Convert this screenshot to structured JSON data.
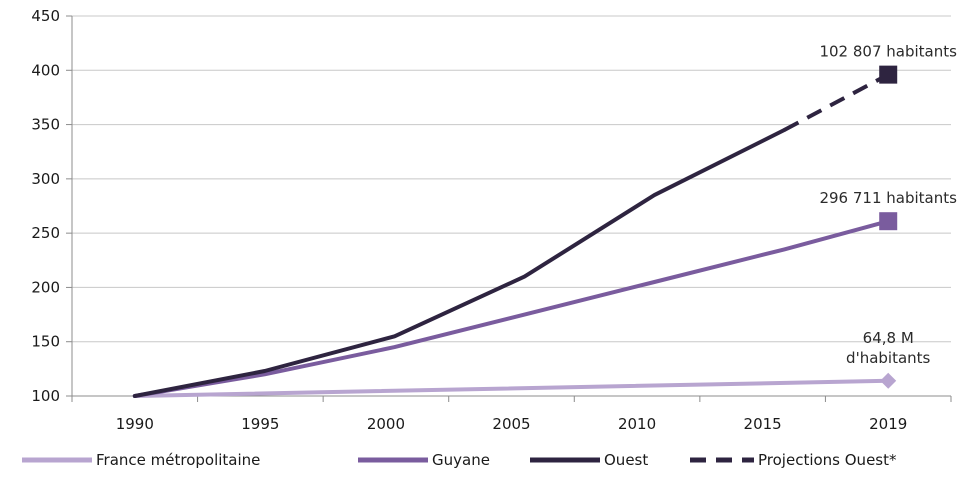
{
  "chart_data": {
    "type": "line",
    "ylim": [
      100,
      450
    ],
    "yticks": [
      "100",
      "150",
      "200",
      "250",
      "300",
      "350",
      "400",
      "450"
    ],
    "xticks": [
      "1990",
      "1995",
      "2000",
      "2005",
      "2010",
      "2015",
      "2019"
    ],
    "grid": "horizontal",
    "legend_position": "bottom",
    "series": [
      {
        "name": "France métropolitaine",
        "color": "#B8A5D0",
        "style": "solid",
        "marker": "diamond",
        "points": [
          [
            1990,
            100
          ],
          [
            2019,
            114
          ]
        ]
      },
      {
        "name": "Guyane",
        "color": "#7A5C9E",
        "style": "solid",
        "marker": "square",
        "points": [
          [
            1990,
            100
          ],
          [
            1995,
            120
          ],
          [
            2000,
            145
          ],
          [
            2005,
            175
          ],
          [
            2010,
            205
          ],
          [
            2015,
            235
          ],
          [
            2019,
            261
          ]
        ]
      },
      {
        "name": "Ouest",
        "color": "#2E2440",
        "style": "solid",
        "marker": "none",
        "points": [
          [
            1990,
            100
          ],
          [
            1995,
            123
          ],
          [
            2000,
            155
          ],
          [
            2005,
            210
          ],
          [
            2010,
            285
          ],
          [
            2015,
            345
          ]
        ]
      },
      {
        "name": "Projections Ouest*",
        "color": "#2E2440",
        "style": "dashed",
        "marker": "square",
        "points": [
          [
            2015,
            345
          ],
          [
            2019,
            396
          ]
        ]
      }
    ],
    "annotations": [
      {
        "lines": [
          "102 807 habitants"
        ],
        "x": 2019,
        "y": 396
      },
      {
        "lines": [
          "296 711 habitants"
        ],
        "x": 2019,
        "y": 261
      },
      {
        "lines": [
          "64,8 M",
          "d'habitants"
        ],
        "x": 2019,
        "y": 114
      }
    ]
  }
}
